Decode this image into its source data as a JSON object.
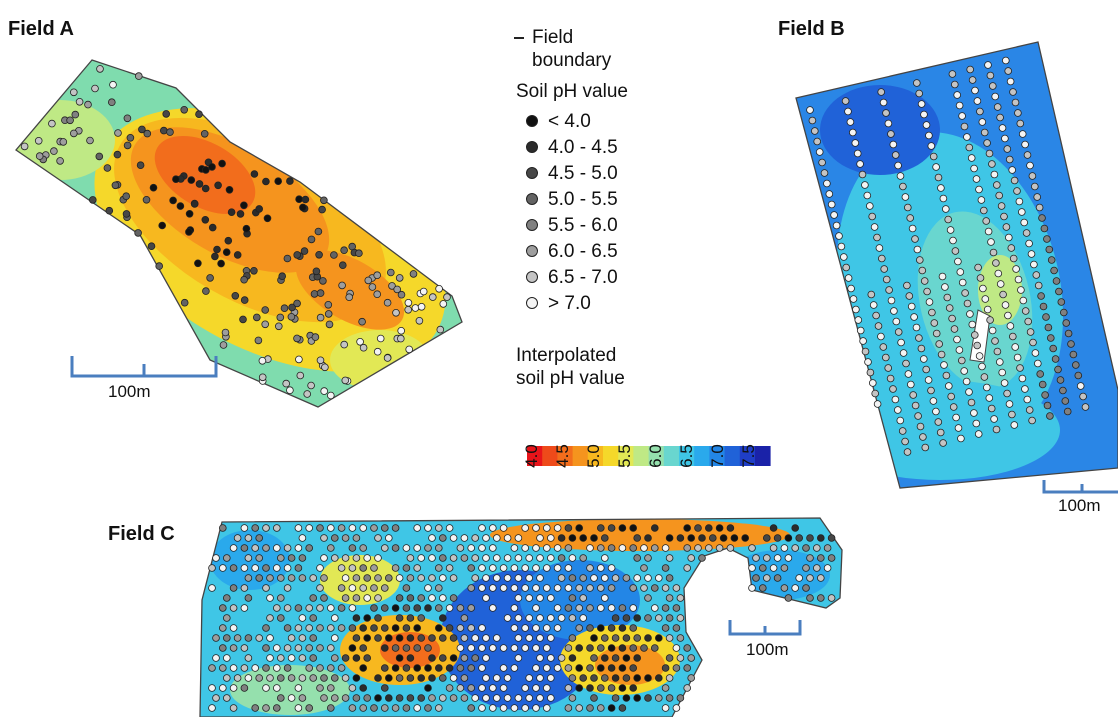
{
  "fields": [
    {
      "id": "A",
      "title": "Field A",
      "scalebar_label": "100m"
    },
    {
      "id": "B",
      "title": "Field B",
      "scalebar_label": "100m"
    },
    {
      "id": "C",
      "title": "Field C",
      "scalebar_label": "100m"
    }
  ],
  "legend": {
    "boundary_label_line1": "Field",
    "boundary_label_line2": "boundary",
    "points_title": "Soil pH value",
    "classes": [
      {
        "label": "< 4.0",
        "color": "#111111"
      },
      {
        "label": "4.0 - 4.5",
        "color": "#2b2b2b"
      },
      {
        "label": "4.5 - 5.0",
        "color": "#474747"
      },
      {
        "label": "5.0 - 5.5",
        "color": "#636363"
      },
      {
        "label": "5.5 - 6.0",
        "color": "#808080"
      },
      {
        "label": "6.0 - 6.5",
        "color": "#9e9e9e"
      },
      {
        "label": "6.5 - 7.0",
        "color": "#c4c4c4"
      },
      {
        "label": "> 7.0",
        "color": "#f4f4f4"
      }
    ],
    "interp_title_line1": "Interpolated",
    "interp_title_line2": "soil pH value",
    "ramp_ticks": [
      "4.0",
      "4.5",
      "5.0",
      "5.5",
      "6.0",
      "6.5",
      "7.0",
      "7.5"
    ],
    "ramp_colors": [
      "#e8141a",
      "#ee4a1a",
      "#f26d1c",
      "#f5941e",
      "#f7b81f",
      "#f5d82a",
      "#e2e855",
      "#bfe985",
      "#95e0ad",
      "#69d6cf",
      "#3fc6e6",
      "#2aa9ec",
      "#2386e6",
      "#2062d8",
      "#1f3ec6",
      "#1a22a8"
    ],
    "accent_colors": {
      "scalebar": "#4a7ebf",
      "boundary": "#444444"
    }
  }
}
